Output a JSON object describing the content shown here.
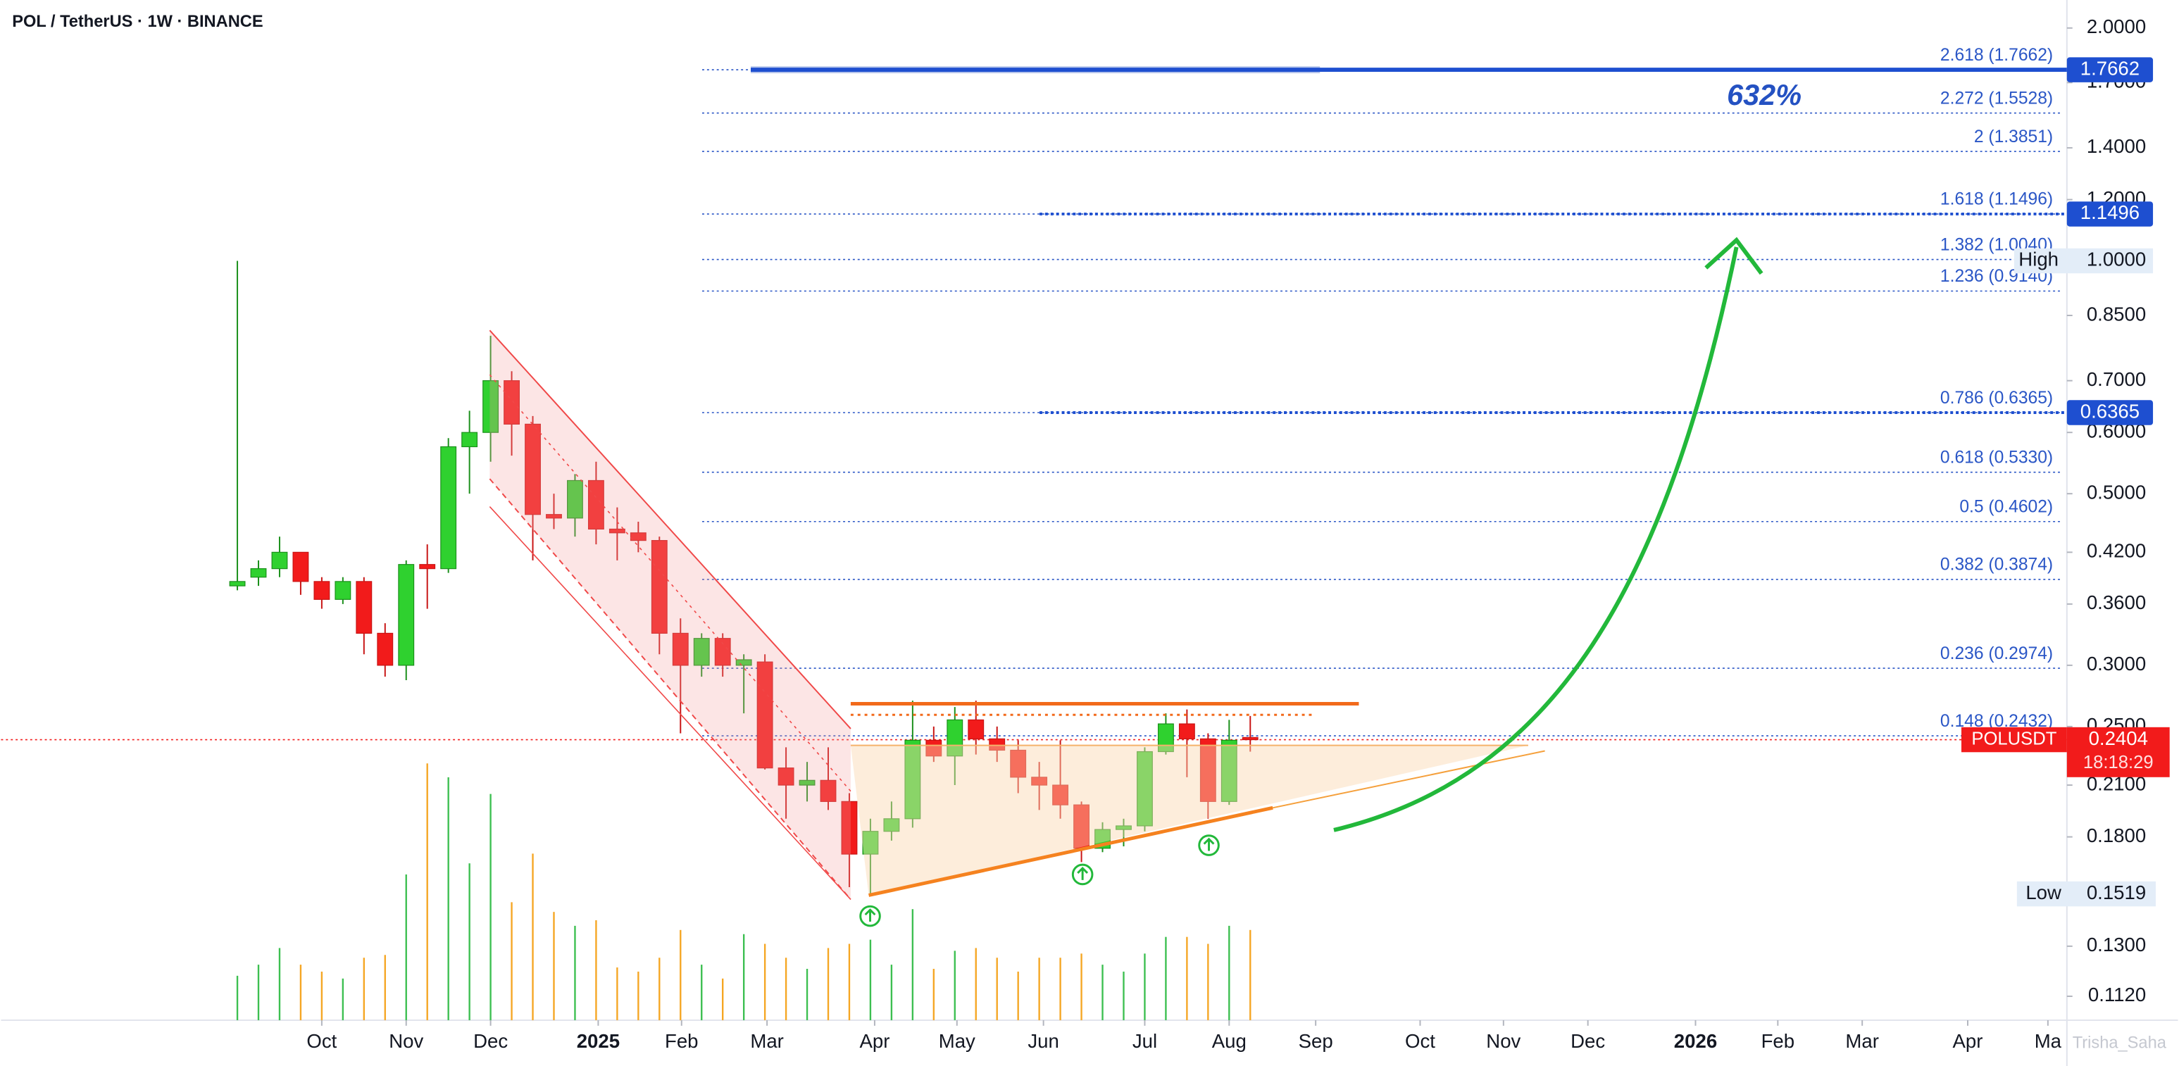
{
  "chart_data": {
    "type": "candlestick",
    "title": "POL / TetherUS · 1W · BINANCE",
    "log": true,
    "categories": [
      null,
      null,
      null,
      null,
      null,
      null,
      null,
      null,
      null,
      null,
      null,
      null,
      null,
      null,
      null,
      null,
      null,
      null,
      null,
      null,
      null,
      null,
      null,
      null,
      null,
      null,
      null,
      null,
      null,
      null,
      null,
      null,
      null,
      null,
      null,
      null,
      null,
      null,
      null,
      null,
      null,
      null,
      null,
      null,
      null,
      null,
      null,
      null,
      null
    ],
    "open": [
      0.38,
      0.39,
      0.4,
      0.42,
      0.385,
      0.365,
      0.385,
      0.33,
      0.3,
      0.405,
      0.4,
      0.575,
      0.6,
      0.7,
      0.615,
      0.47,
      0.465,
      0.52,
      0.45,
      0.445,
      0.435,
      0.33,
      0.3,
      0.325,
      0.3,
      0.303,
      0.221,
      0.21,
      0.213,
      0.2,
      0.171,
      0.183,
      0.19,
      0.24,
      0.229,
      0.255,
      0.241,
      0.233,
      0.215,
      0.21,
      0.198,
      0.174,
      0.184,
      0.186,
      0.232,
      0.252,
      0.241,
      0.2,
      0.242
    ],
    "high": [
      1.0,
      0.41,
      0.44,
      0.42,
      0.39,
      0.39,
      0.39,
      0.34,
      0.41,
      0.43,
      0.59,
      0.64,
      0.8,
      0.72,
      0.63,
      0.5,
      0.53,
      0.55,
      0.48,
      0.46,
      0.44,
      0.345,
      0.33,
      0.33,
      0.31,
      0.31,
      0.235,
      0.225,
      0.235,
      0.205,
      0.19,
      0.2,
      0.27,
      0.25,
      0.265,
      0.27,
      0.25,
      0.24,
      0.225,
      0.24,
      0.2,
      0.188,
      0.19,
      0.235,
      0.26,
      0.263,
      0.245,
      0.255,
      0.258
    ],
    "low": [
      0.375,
      0.38,
      0.39,
      0.37,
      0.355,
      0.36,
      0.31,
      0.29,
      0.287,
      0.355,
      0.395,
      0.5,
      0.55,
      0.56,
      0.41,
      0.45,
      0.44,
      0.43,
      0.41,
      0.42,
      0.31,
      0.245,
      0.29,
      0.29,
      0.26,
      0.22,
      0.19,
      0.2,
      0.195,
      0.155,
      0.1519,
      0.178,
      0.185,
      0.225,
      0.21,
      0.23,
      0.225,
      0.205,
      0.195,
      0.19,
      0.167,
      0.172,
      0.175,
      0.183,
      0.23,
      0.215,
      0.19,
      0.198,
      0.232
    ],
    "close": [
      0.385,
      0.4,
      0.42,
      0.385,
      0.365,
      0.385,
      0.33,
      0.3,
      0.405,
      0.4,
      0.575,
      0.6,
      0.7,
      0.615,
      0.47,
      0.465,
      0.52,
      0.45,
      0.445,
      0.435,
      0.33,
      0.3,
      0.325,
      0.3,
      0.305,
      0.221,
      0.21,
      0.213,
      0.2,
      0.171,
      0.183,
      0.19,
      0.24,
      0.229,
      0.255,
      0.241,
      0.233,
      0.215,
      0.21,
      0.198,
      0.174,
      0.184,
      0.186,
      0.232,
      0.252,
      0.241,
      0.2,
      0.24,
      0.2404
    ],
    "volume": [
      32,
      40,
      52,
      40,
      35,
      30,
      45,
      47,
      105,
      185,
      175,
      113,
      163,
      85,
      120,
      78,
      68,
      72,
      38,
      35,
      45,
      65,
      40,
      30,
      62,
      55,
      45,
      37,
      52,
      55,
      58,
      40,
      80,
      37,
      50,
      52,
      45,
      35,
      45,
      45,
      48,
      40,
      35,
      48,
      60,
      60,
      55,
      68,
      65
    ],
    "vlim": [
      0,
      735
    ],
    "up_color": "#2fd12f",
    "down_color": "#f21b1b",
    "volume_up_color": "#3cbf50",
    "volume_down_color": "#f5a623",
    "xlim": [
      -11.2,
      86.7
    ],
    "xticks": [
      {
        "value": 4.0,
        "label": "Oct"
      },
      {
        "value": 8.0,
        "label": "Nov"
      },
      {
        "value": 12.0,
        "label": "Dec"
      },
      {
        "value": 17.1,
        "label": "2025"
      },
      {
        "value": 21.05,
        "label": "Feb"
      },
      {
        "value": 25.1,
        "label": "Mar"
      },
      {
        "value": 30.2,
        "label": "Apr"
      },
      {
        "value": 34.1,
        "label": "May"
      },
      {
        "value": 38.2,
        "label": "Jun"
      },
      {
        "value": 43.0,
        "label": "Jul"
      },
      {
        "value": 47.0,
        "label": "Aug"
      },
      {
        "value": 51.1,
        "label": "Sep"
      },
      {
        "value": 56.05,
        "label": "Oct"
      },
      {
        "value": 60.0,
        "label": "Nov"
      },
      {
        "value": 64.0,
        "label": "Dec"
      },
      {
        "value": 69.1,
        "label": "2026"
      },
      {
        "value": 73.0,
        "label": "Feb"
      },
      {
        "value": 77.0,
        "label": "Mar"
      },
      {
        "value": 82.0,
        "label": "Apr"
      },
      {
        "value": 85.8,
        "label": "Ma"
      }
    ],
    "ylim": [
      0.1043,
      2.1739
    ],
    "yticks": [
      {
        "value": 2,
        "label": "2.0000"
      },
      {
        "value": 1.7,
        "label": "1.7000"
      },
      {
        "value": 1.4,
        "label": "1.4000"
      },
      {
        "value": 1.2,
        "label": "1.2000"
      },
      {
        "value": 1,
        "label": "1.0000"
      },
      {
        "value": 0.85,
        "label": "0.8500"
      },
      {
        "value": 0.7,
        "label": "0.7000"
      },
      {
        "value": 0.6,
        "label": "0.6000"
      },
      {
        "value": 0.5,
        "label": "0.5000"
      },
      {
        "value": 0.42,
        "label": "0.4200"
      },
      {
        "value": 0.36,
        "label": "0.3600"
      },
      {
        "value": 0.3,
        "label": "0.3000"
      },
      {
        "value": 0.25,
        "label": "0.2500"
      },
      {
        "value": 0.21,
        "label": "0.2100"
      },
      {
        "value": 0.18,
        "label": "0.1800"
      },
      {
        "value": 0.13,
        "label": "0.1300"
      },
      {
        "value": 0.112,
        "label": "0.1120"
      }
    ],
    "fib_color": "#2a56c6",
    "fib_levels": [
      {
        "value": 1.7662,
        "label": "2.618 (1.7662)"
      },
      {
        "value": 1.5528,
        "label": "2.272 (1.5528)"
      },
      {
        "value": 1.3851,
        "label": "2 (1.3851)"
      },
      {
        "value": 1.1496,
        "label": "1.618 (1.1496)"
      },
      {
        "value": 1.004,
        "label": "1.382 (1.0040)"
      },
      {
        "value": 0.914,
        "label": "1.236 (0.9140)"
      },
      {
        "value": 0.6365,
        "label": "0.786 (0.6365)"
      },
      {
        "value": 0.533,
        "label": "0.618 (0.5330)"
      },
      {
        "value": 0.4602,
        "label": "0.5 (0.4602)"
      },
      {
        "value": 0.3874,
        "label": "0.382 (0.3874)"
      },
      {
        "value": 0.2974,
        "label": "0.236 (0.2974)"
      },
      {
        "value": 0.2432,
        "label": "0.148 (0.2432)"
      }
    ],
    "price_tags": [
      {
        "value": 1.7662,
        "label": "1.7662"
      },
      {
        "value": 1.1496,
        "label": "1.1496"
      },
      {
        "value": 0.6365,
        "label": "0.6365"
      }
    ],
    "high_tag": {
      "name": "High",
      "value": 1,
      "label": "1.0000"
    },
    "low_tag": {
      "name": "Low",
      "value": 0.1519,
      "label": "0.1519"
    },
    "last_price": {
      "symbol": "POLUSDT",
      "value": 0.2404,
      "label": "0.2404",
      "timer": "18:18:29"
    },
    "annotation": "632%",
    "watermark": "Trisha_Saha"
  }
}
